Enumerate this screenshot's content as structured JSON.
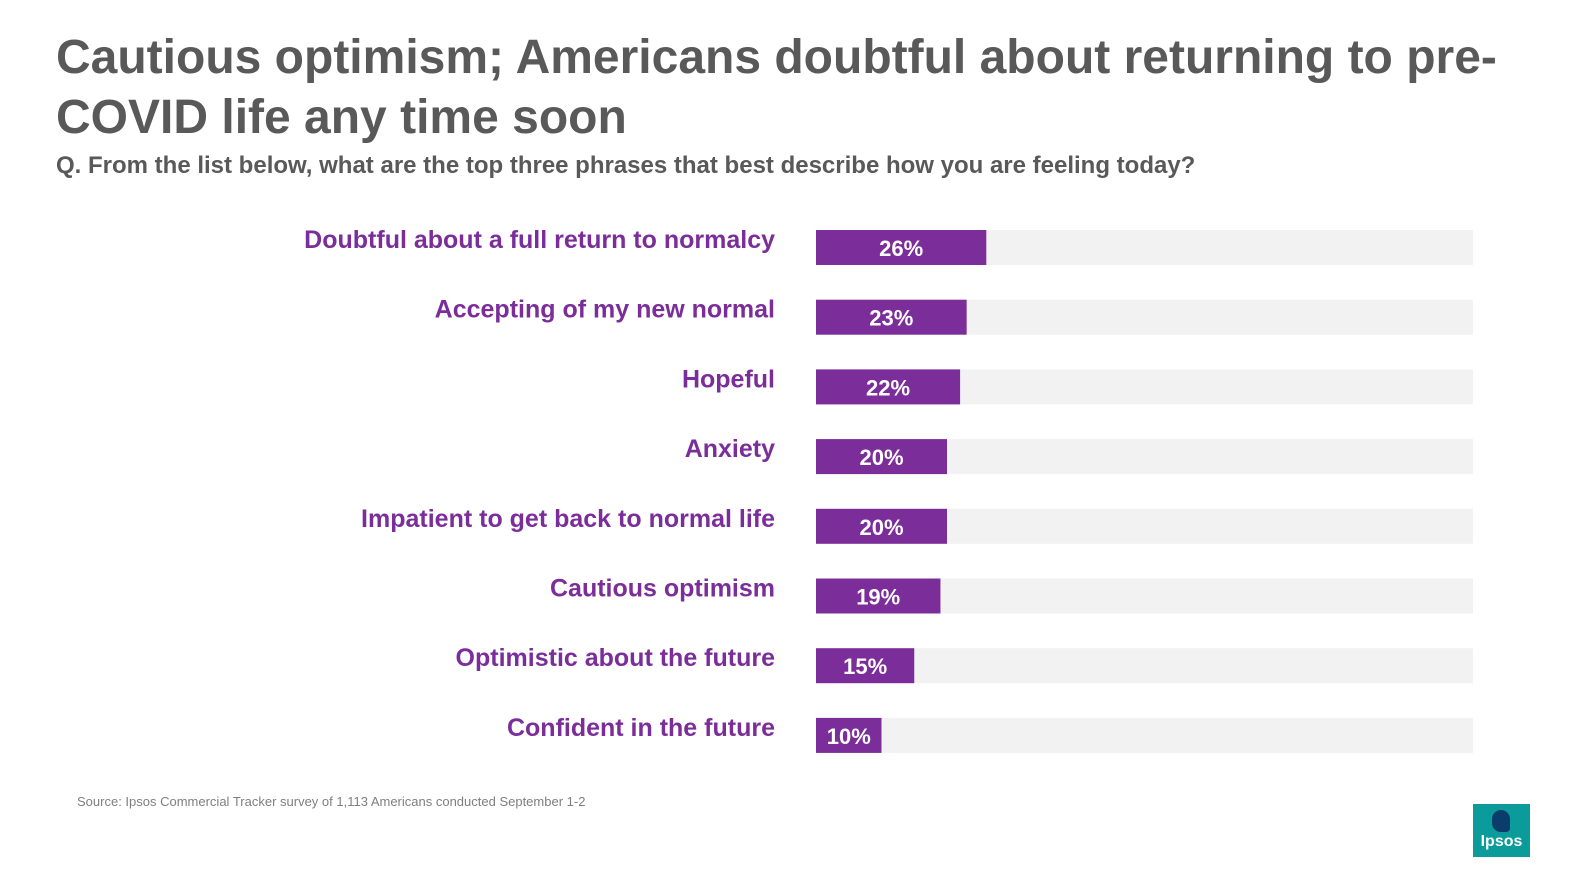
{
  "header": {
    "title": "Cautious optimism; Americans doubtful about returning to pre-COVID life any time soon",
    "subtitle": "Q. From the list below, what are the top three phrases that best describe how you are feeling today?"
  },
  "chart_data": {
    "type": "bar",
    "orientation": "horizontal",
    "categories": [
      "Doubtful about a full return to normalcy",
      "Accepting of my new normal",
      "Hopeful",
      "Anxiety",
      "Impatient to get back to normal life",
      "Cautious optimism",
      "Optimistic about the future",
      "Confident in the future"
    ],
    "values": [
      26,
      23,
      22,
      20,
      20,
      19,
      15,
      10
    ],
    "value_labels": [
      "26%",
      "23%",
      "22%",
      "20%",
      "20%",
      "19%",
      "15%",
      "10%"
    ],
    "xlim": [
      0,
      100
    ],
    "grid": false,
    "bar_color": "#7b2d9a",
    "track_color": "#f2f2f2",
    "label_color": "#7b2d9a"
  },
  "footer": {
    "source": "Source: Ipsos Commercial Tracker survey of 1,113 Americans conducted September 1-2",
    "logo_text": "Ipsos"
  }
}
